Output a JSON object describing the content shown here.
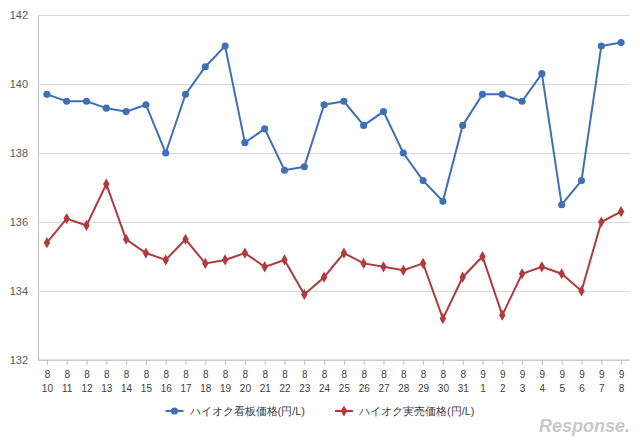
{
  "chart_data": {
    "type": "line",
    "categories": [
      "8\n10",
      "8\n11",
      "8\n12",
      "8\n13",
      "8\n14",
      "8\n15",
      "8\n16",
      "8\n17",
      "8\n18",
      "8\n19",
      "8\n20",
      "8\n21",
      "8\n22",
      "8\n23",
      "8\n24",
      "8\n25",
      "8\n26",
      "8\n27",
      "8\n28",
      "8\n29",
      "8\n30",
      "8\n31",
      "9\n1",
      "9\n2",
      "9\n3",
      "9\n4",
      "9\n5",
      "9\n6",
      "9\n7",
      "9\n8"
    ],
    "series": [
      {
        "name": "ハイオク看板価格(円/L)",
        "color": "#3f6fb5",
        "marker": "circle",
        "values": [
          139.7,
          139.5,
          139.5,
          139.3,
          139.2,
          139.4,
          138.0,
          139.7,
          140.5,
          141.1,
          138.3,
          138.7,
          137.5,
          137.6,
          139.4,
          139.5,
          138.8,
          139.2,
          138.0,
          137.2,
          136.6,
          138.8,
          139.7,
          139.7,
          139.5,
          140.3,
          136.5,
          137.2,
          141.1,
          141.2
        ]
      },
      {
        "name": "ハイオク実売価格(円/L)",
        "color": "#b03a3c",
        "marker": "diamond",
        "values": [
          135.4,
          136.1,
          135.9,
          137.1,
          135.5,
          135.1,
          134.9,
          135.5,
          134.8,
          134.9,
          135.1,
          134.7,
          134.9,
          133.9,
          134.4,
          135.1,
          134.8,
          134.7,
          134.6,
          134.8,
          133.2,
          134.4,
          135.0,
          133.3,
          134.5,
          134.7,
          134.5,
          134.0,
          136.0,
          136.3
        ]
      }
    ],
    "ylim": [
      132,
      142
    ],
    "yticks": [
      132,
      134,
      136,
      138,
      140,
      142
    ],
    "grid": true,
    "legend": "bottom",
    "watermark": "Response."
  }
}
